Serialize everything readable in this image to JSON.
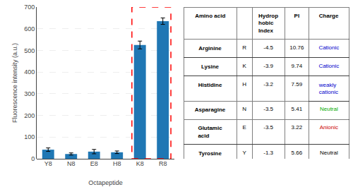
{
  "chart_data": [
    {
      "type": "bar",
      "categories": [
        "Y8",
        "N8",
        "E8",
        "H8",
        "K8",
        "R8"
      ],
      "values": [
        42,
        22,
        33,
        30,
        525,
        635
      ],
      "errors": [
        8,
        5,
        10,
        6,
        18,
        15
      ],
      "ylim": [
        0,
        700
      ],
      "yticks": [
        0,
        100,
        200,
        300,
        400,
        500,
        600,
        700
      ],
      "ylabel": "Fluorescence intensity (a.u.)",
      "xlabel": "Octapeptide",
      "grid": true,
      "highlight": {
        "categories": [
          "K8",
          "R8"
        ],
        "color": "#ff0000"
      }
    },
    {
      "type": "table",
      "columns": [
        "Amino acid",
        "Hydrop\nhobic\nIndex",
        "PI",
        "Charge"
      ],
      "rows": [
        [
          "Arginine",
          "R",
          "-4.5",
          "10.76",
          "Cationic"
        ],
        [
          "Lysine",
          "K",
          "-3.9",
          "9.74",
          "Cationic"
        ],
        [
          "Histidine",
          "H",
          "-3.2",
          "7.59",
          "weakly\ncationic"
        ],
        [
          "Asparagine",
          "N",
          "-3.5",
          "5.41",
          "Neutral"
        ],
        [
          "Glutamic\nacid",
          "E",
          "-3.5",
          "3.22",
          "Anionic"
        ],
        [
          "Tyrosine",
          "Y",
          "-1.3",
          "5.66",
          "Neutral"
        ]
      ],
      "colors": [
        "#0000cc",
        "#0000cc",
        "#0000cc",
        "#00aa00",
        "#cc0000",
        "#000000"
      ]
    }
  ]
}
